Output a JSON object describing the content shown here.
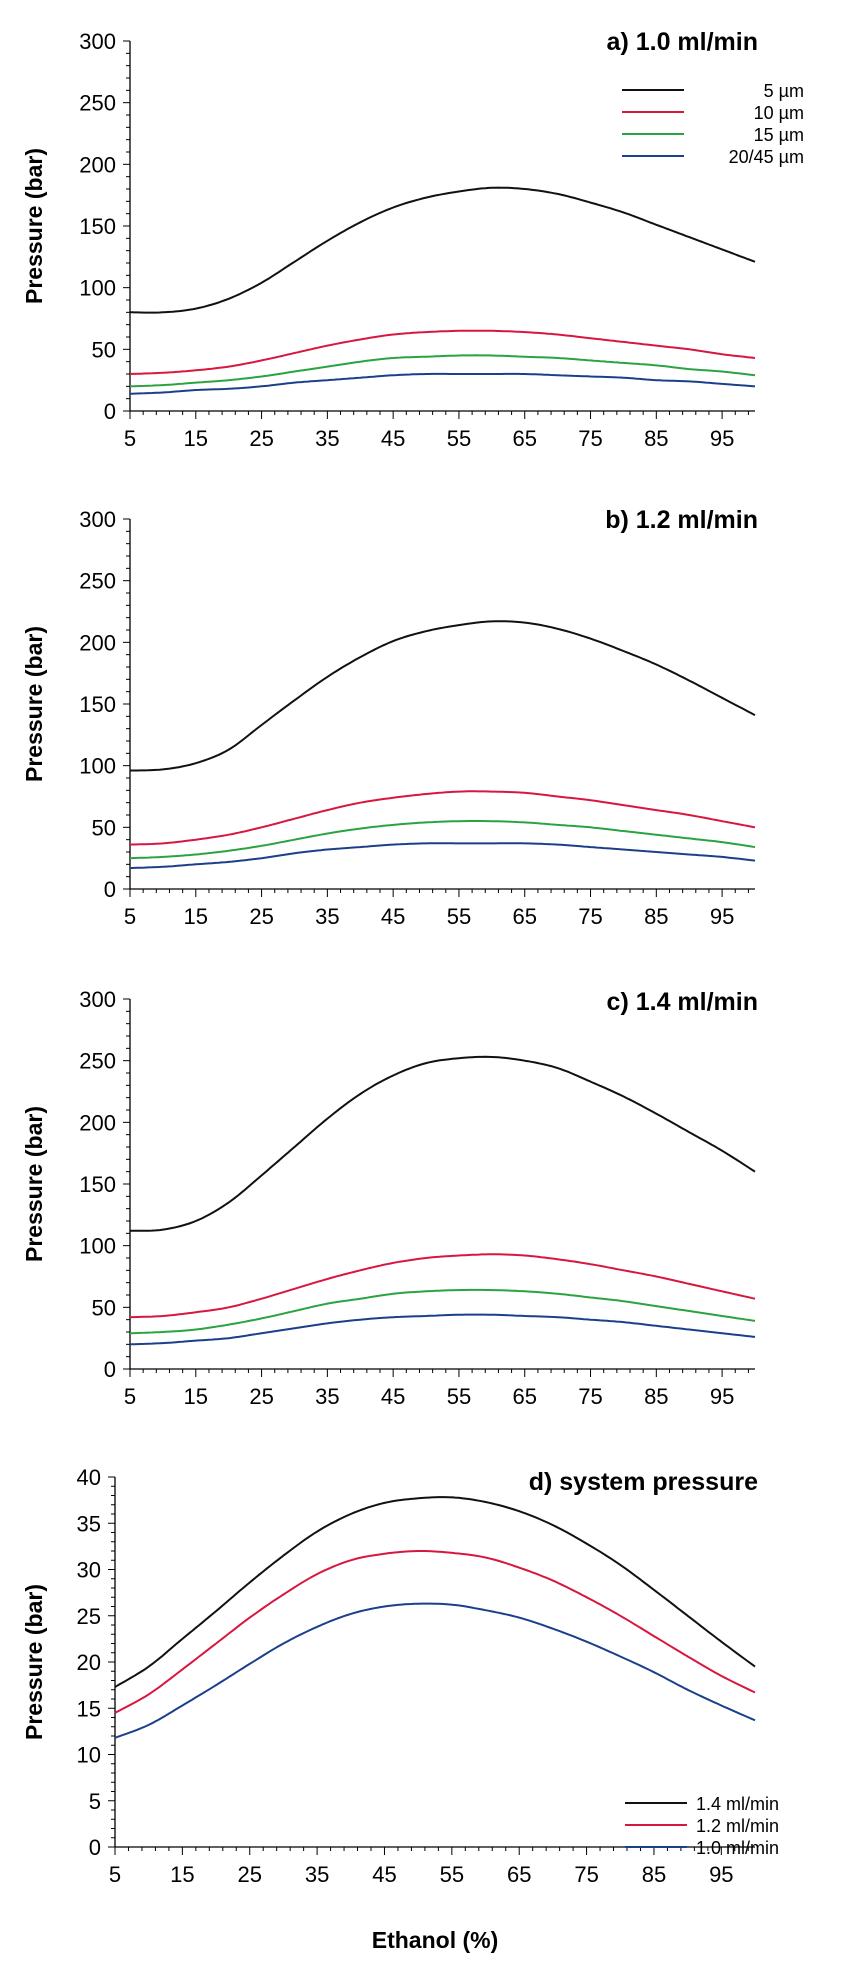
{
  "colors": {
    "black": "#111111",
    "red": "#d8173f",
    "green": "#2aa341",
    "blue": "#1c3f8c"
  },
  "shared": {
    "xlabel": "Ethanol (%)",
    "ylabel": "Pressure (bar)",
    "x_ticks": [
      "5",
      "15",
      "25",
      "35",
      "45",
      "55",
      "65",
      "75",
      "85",
      "95"
    ]
  },
  "chart_data": [
    {
      "type": "line",
      "title": "a)  1.0 ml/min",
      "xlabel": "",
      "ylabel": "Pressure (bar)",
      "xlim": [
        5,
        100
      ],
      "ylim": [
        0,
        300
      ],
      "y_ticks": [
        "0",
        "50",
        "100",
        "150",
        "200",
        "250",
        "300"
      ],
      "grid": false,
      "legend": "top-right",
      "x": [
        5,
        10,
        15,
        20,
        25,
        30,
        35,
        40,
        45,
        50,
        55,
        60,
        65,
        70,
        75,
        80,
        85,
        90,
        95,
        100
      ],
      "series": [
        {
          "name": "5 µm",
          "color": "black",
          "values": [
            80,
            80,
            83,
            91,
            104,
            121,
            138,
            153,
            165,
            173,
            178,
            181,
            180,
            176,
            169,
            161,
            151,
            141,
            131,
            121
          ]
        },
        {
          "name": "10 µm",
          "color": "red",
          "values": [
            30,
            31,
            33,
            36,
            41,
            47,
            53,
            58,
            62,
            64,
            65,
            65,
            64,
            62,
            59,
            56,
            53,
            50,
            46,
            43
          ]
        },
        {
          "name": "15 µm",
          "color": "green",
          "values": [
            20,
            21,
            23,
            25,
            28,
            32,
            36,
            40,
            43,
            44,
            45,
            45,
            44,
            43,
            41,
            39,
            37,
            34,
            32,
            29
          ]
        },
        {
          "name": "20/45 µm",
          "color": "blue",
          "values": [
            14,
            15,
            17,
            18,
            20,
            23,
            25,
            27,
            29,
            30,
            30,
            30,
            30,
            29,
            28,
            27,
            25,
            24,
            22,
            20
          ]
        }
      ]
    },
    {
      "type": "line",
      "title": "b)  1.2 ml/min",
      "xlabel": "",
      "ylabel": "Pressure (bar)",
      "xlim": [
        5,
        100
      ],
      "ylim": [
        0,
        300
      ],
      "y_ticks": [
        "0",
        "50",
        "100",
        "150",
        "200",
        "250",
        "300"
      ],
      "grid": false,
      "x": [
        5,
        10,
        15,
        20,
        25,
        30,
        35,
        40,
        45,
        50,
        55,
        60,
        65,
        70,
        75,
        80,
        85,
        90,
        95,
        100
      ],
      "series": [
        {
          "color": "black",
          "values": [
            96,
            97,
            102,
            113,
            133,
            153,
            172,
            188,
            201,
            209,
            214,
            217,
            216,
            211,
            203,
            193,
            182,
            169,
            155,
            141
          ]
        },
        {
          "color": "red",
          "values": [
            36,
            37,
            40,
            44,
            50,
            57,
            64,
            70,
            74,
            77,
            79,
            79,
            78,
            75,
            72,
            68,
            64,
            60,
            55,
            50
          ]
        },
        {
          "color": "green",
          "values": [
            25,
            26,
            28,
            31,
            35,
            40,
            45,
            49,
            52,
            54,
            55,
            55,
            54,
            52,
            50,
            47,
            44,
            41,
            38,
            34
          ]
        },
        {
          "color": "blue",
          "values": [
            17,
            18,
            20,
            22,
            25,
            29,
            32,
            34,
            36,
            37,
            37,
            37,
            37,
            36,
            34,
            32,
            30,
            28,
            26,
            23
          ]
        }
      ]
    },
    {
      "type": "line",
      "title": "c)  1.4 ml/min",
      "xlabel": "",
      "ylabel": "Pressure (bar)",
      "xlim": [
        5,
        100
      ],
      "ylim": [
        0,
        300
      ],
      "y_ticks": [
        "0",
        "50",
        "100",
        "150",
        "200",
        "250",
        "300"
      ],
      "grid": false,
      "x": [
        5,
        10,
        15,
        20,
        25,
        30,
        35,
        40,
        45,
        50,
        55,
        60,
        65,
        70,
        75,
        80,
        85,
        90,
        95,
        100
      ],
      "series": [
        {
          "color": "black",
          "values": [
            112,
            113,
            120,
            135,
            157,
            180,
            203,
            223,
            238,
            248,
            252,
            253,
            250,
            244,
            233,
            221,
            207,
            192,
            177,
            160
          ]
        },
        {
          "color": "red",
          "values": [
            42,
            43,
            46,
            50,
            57,
            65,
            73,
            80,
            86,
            90,
            92,
            93,
            92,
            89,
            85,
            80,
            75,
            69,
            63,
            57
          ]
        },
        {
          "color": "green",
          "values": [
            29,
            30,
            32,
            36,
            41,
            47,
            53,
            57,
            61,
            63,
            64,
            64,
            63,
            61,
            58,
            55,
            51,
            47,
            43,
            39
          ]
        },
        {
          "color": "blue",
          "values": [
            20,
            21,
            23,
            25,
            29,
            33,
            37,
            40,
            42,
            43,
            44,
            44,
            43,
            42,
            40,
            38,
            35,
            32,
            29,
            26
          ]
        }
      ]
    },
    {
      "type": "line",
      "title": "d)  system pressure",
      "xlabel": "Ethanol (%)",
      "ylabel": "Pressure (bar)",
      "xlim": [
        5,
        100
      ],
      "ylim": [
        0,
        40
      ],
      "y_ticks": [
        "0",
        "5",
        "10",
        "15",
        "20",
        "25",
        "30",
        "35",
        "40"
      ],
      "grid": false,
      "legend": "bottom-right",
      "x": [
        5,
        10,
        15,
        20,
        25,
        30,
        35,
        40,
        45,
        50,
        55,
        60,
        65,
        70,
        75,
        80,
        85,
        90,
        95,
        100
      ],
      "series": [
        {
          "name": "1.4 ml/min",
          "color": "black",
          "values": [
            17.3,
            19.5,
            22.5,
            25.5,
            28.6,
            31.5,
            34.1,
            36.0,
            37.2,
            37.7,
            37.8,
            37.3,
            36.3,
            34.8,
            32.8,
            30.5,
            27.8,
            25.0,
            22.2,
            19.5
          ]
        },
        {
          "name": "1.2 ml/min",
          "color": "red",
          "values": [
            14.5,
            16.5,
            19.2,
            22.0,
            24.8,
            27.3,
            29.5,
            31.0,
            31.7,
            32.0,
            31.8,
            31.3,
            30.2,
            28.8,
            27.0,
            25.0,
            22.8,
            20.6,
            18.5,
            16.7
          ]
        },
        {
          "name": "1.0 ml/min",
          "color": "blue",
          "values": [
            11.8,
            13.2,
            15.3,
            17.5,
            19.8,
            22.0,
            23.8,
            25.2,
            26.0,
            26.3,
            26.2,
            25.6,
            24.8,
            23.6,
            22.2,
            20.6,
            18.9,
            17.0,
            15.3,
            13.7
          ]
        }
      ]
    }
  ]
}
